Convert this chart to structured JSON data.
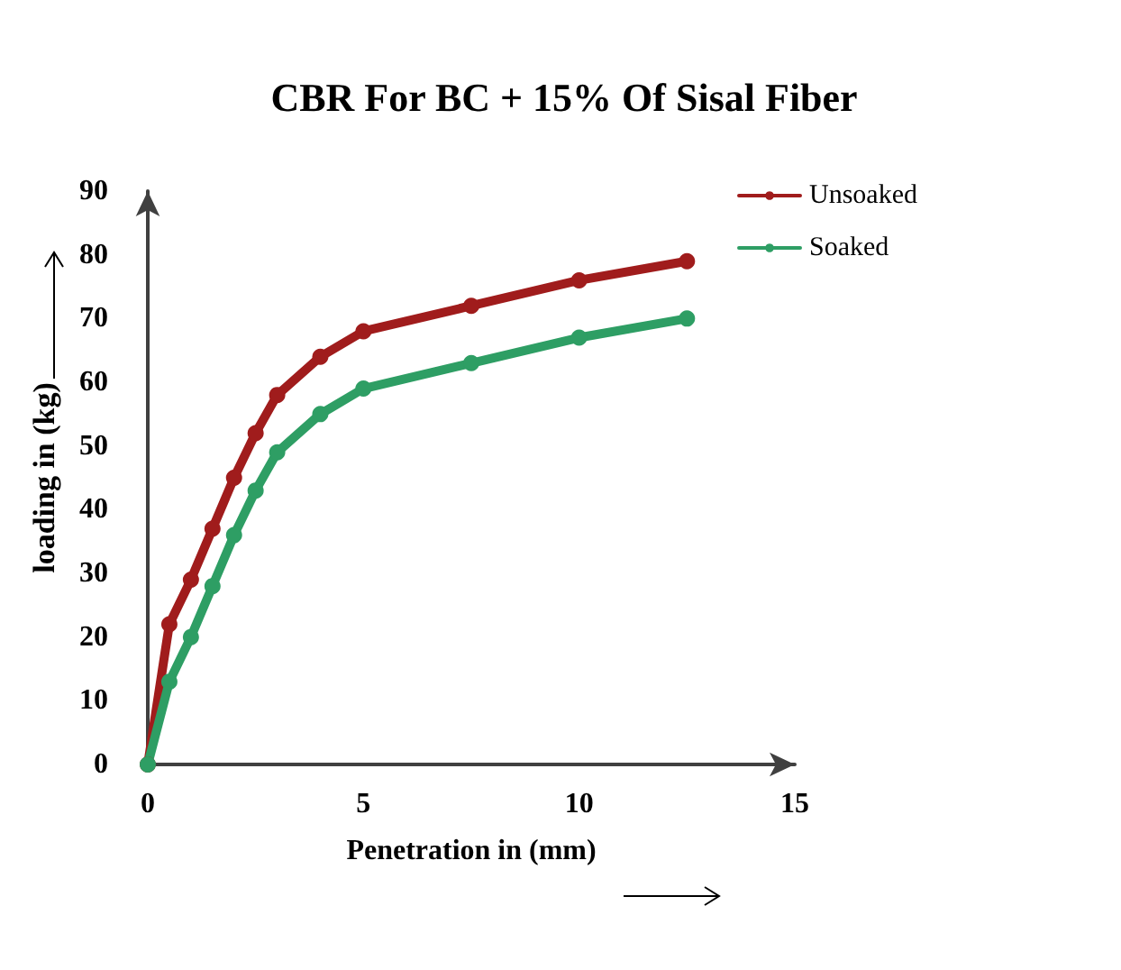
{
  "chart_data": {
    "type": "line",
    "title": "CBR For BC + 15% Of Sisal Fiber",
    "xlabel": "Penetration in (mm)",
    "ylabel": "loading in (kg)",
    "x": [
      0,
      0.5,
      1,
      1.5,
      2,
      2.5,
      3,
      4,
      5,
      7.5,
      10,
      12.5
    ],
    "series": [
      {
        "name": "Unsoaked",
        "color": "#a01c1c",
        "values": [
          0,
          22,
          29,
          37,
          45,
          52,
          58,
          64,
          68,
          72,
          76,
          79
        ]
      },
      {
        "name": "Soaked",
        "color": "#2e9e64",
        "values": [
          0,
          13,
          20,
          28,
          36,
          43,
          49,
          55,
          59,
          63,
          67,
          70
        ]
      }
    ],
    "xlim": [
      0,
      15
    ],
    "xticks": [
      0,
      5,
      10,
      15
    ],
    "ylim": [
      0,
      90
    ],
    "yticks": [
      0,
      10,
      20,
      30,
      40,
      50,
      60,
      70,
      80,
      90
    ],
    "grid": false,
    "legend": "top right",
    "marker": "circle",
    "line_style": "solid"
  }
}
